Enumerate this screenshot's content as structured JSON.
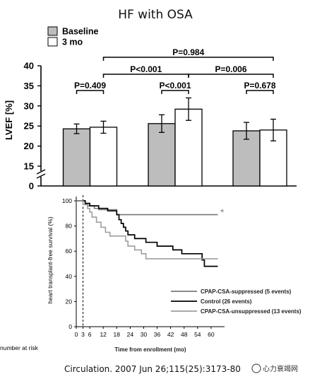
{
  "figure": {
    "title": "HF with OSA",
    "citation": "Circulation. 2007 Jun 26;115(25):3173-80",
    "watermark": "心力衰竭网"
  },
  "chart_data": [
    {
      "type": "bar",
      "title": "HF with OSA",
      "ylabel": "LVEF [%]",
      "ylim": [
        15,
        40
      ],
      "yticks": [
        15,
        20,
        25,
        30,
        35,
        40
      ],
      "extra_ytick": 0,
      "axis_break": true,
      "grid": false,
      "legend_position": "top-left",
      "series": [
        {
          "name": "Baseline",
          "color": "#bdbdbd",
          "values": [
            24.3,
            25.6,
            23.8
          ],
          "errors": [
            1.2,
            2.2,
            2.1
          ]
        },
        {
          "name": "3 mo",
          "color": "#ffffff",
          "values": [
            24.7,
            29.2,
            24.0
          ],
          "errors": [
            1.5,
            2.8,
            2.7
          ]
        }
      ],
      "comparisons": [
        {
          "label": "P=0.409",
          "from": [
            0,
            0
          ],
          "to": [
            0,
            1
          ]
        },
        {
          "label": "P<0.001",
          "from": [
            1,
            0
          ],
          "to": [
            1,
            1
          ]
        },
        {
          "label": "P=0.678",
          "from": [
            2,
            0
          ],
          "to": [
            2,
            1
          ]
        },
        {
          "label": "P<0.001",
          "from": [
            0,
            1
          ],
          "to": [
            1,
            1
          ]
        },
        {
          "label": "P=0.006",
          "from": [
            1,
            1
          ],
          "to": [
            2,
            1
          ]
        },
        {
          "label": "P=0.984",
          "from": [
            0,
            1
          ],
          "to": [
            2,
            1
          ]
        }
      ]
    },
    {
      "type": "line",
      "step": true,
      "ylabel": "heart transplant-free survival (%)",
      "xlabel": "Time from enrollment (mo)",
      "xlim": [
        0,
        66
      ],
      "ylim": [
        0,
        100
      ],
      "xticks": [
        0,
        3,
        6,
        12,
        18,
        24,
        30,
        36,
        42,
        48,
        54,
        60
      ],
      "yticks": [
        0,
        20,
        40,
        60,
        80,
        100
      ],
      "vline_x": 3,
      "at_risk_label": "number at risk",
      "legend_position": "bottom-right",
      "series": [
        {
          "name": "CPAP-CSA-suppressed (5 events)",
          "color": "#7a7a7a",
          "width": 1.6,
          "points": [
            [
              0,
              100
            ],
            [
              4,
              100
            ],
            [
              4,
              97
            ],
            [
              5,
              97
            ],
            [
              5,
              96
            ],
            [
              8,
              96
            ],
            [
              8,
              94
            ],
            [
              10,
              94
            ],
            [
              10,
              93
            ],
            [
              18,
              93
            ],
            [
              18,
              89
            ],
            [
              63,
              89
            ]
          ],
          "marker": "*"
        },
        {
          "name": "Control (26 events)",
          "color": "#000000",
          "width": 1.7,
          "points": [
            [
              0,
              100
            ],
            [
              4,
              100
            ],
            [
              4,
              98
            ],
            [
              6,
              98
            ],
            [
              6,
              96
            ],
            [
              10,
              96
            ],
            [
              10,
              94
            ],
            [
              14,
              94
            ],
            [
              14,
              92
            ],
            [
              18,
              92
            ],
            [
              18,
              89
            ],
            [
              19,
              89
            ],
            [
              19,
              85
            ],
            [
              20,
              85
            ],
            [
              20,
              82
            ],
            [
              21,
              82
            ],
            [
              21,
              79
            ],
            [
              22,
              79
            ],
            [
              22,
              76
            ],
            [
              23,
              76
            ],
            [
              23,
              73
            ],
            [
              26,
              73
            ],
            [
              26,
              70
            ],
            [
              31,
              70
            ],
            [
              31,
              67
            ],
            [
              36,
              67
            ],
            [
              36,
              64
            ],
            [
              43,
              64
            ],
            [
              43,
              61
            ],
            [
              47,
              61
            ],
            [
              47,
              58
            ],
            [
              56,
              58
            ],
            [
              56,
              53
            ],
            [
              57,
              53
            ],
            [
              57,
              48
            ],
            [
              63,
              48
            ]
          ]
        },
        {
          "name": "CPAP-CSA-unsuppressed (13 events)",
          "color": "#9e9e9e",
          "width": 1.6,
          "points": [
            [
              0,
              100
            ],
            [
              3,
              100
            ],
            [
              3,
              97
            ],
            [
              5,
              97
            ],
            [
              5,
              94
            ],
            [
              6,
              94
            ],
            [
              6,
              91
            ],
            [
              7,
              91
            ],
            [
              7,
              87
            ],
            [
              9,
              87
            ],
            [
              9,
              83
            ],
            [
              11,
              83
            ],
            [
              11,
              79
            ],
            [
              13,
              79
            ],
            [
              13,
              75
            ],
            [
              15,
              75
            ],
            [
              15,
              72
            ],
            [
              22,
              72
            ],
            [
              22,
              68
            ],
            [
              23,
              68
            ],
            [
              23,
              64
            ],
            [
              26,
              64
            ],
            [
              26,
              61
            ],
            [
              29,
              61
            ],
            [
              29,
              58
            ],
            [
              31,
              58
            ],
            [
              31,
              54
            ],
            [
              63,
              54
            ]
          ]
        }
      ]
    }
  ]
}
